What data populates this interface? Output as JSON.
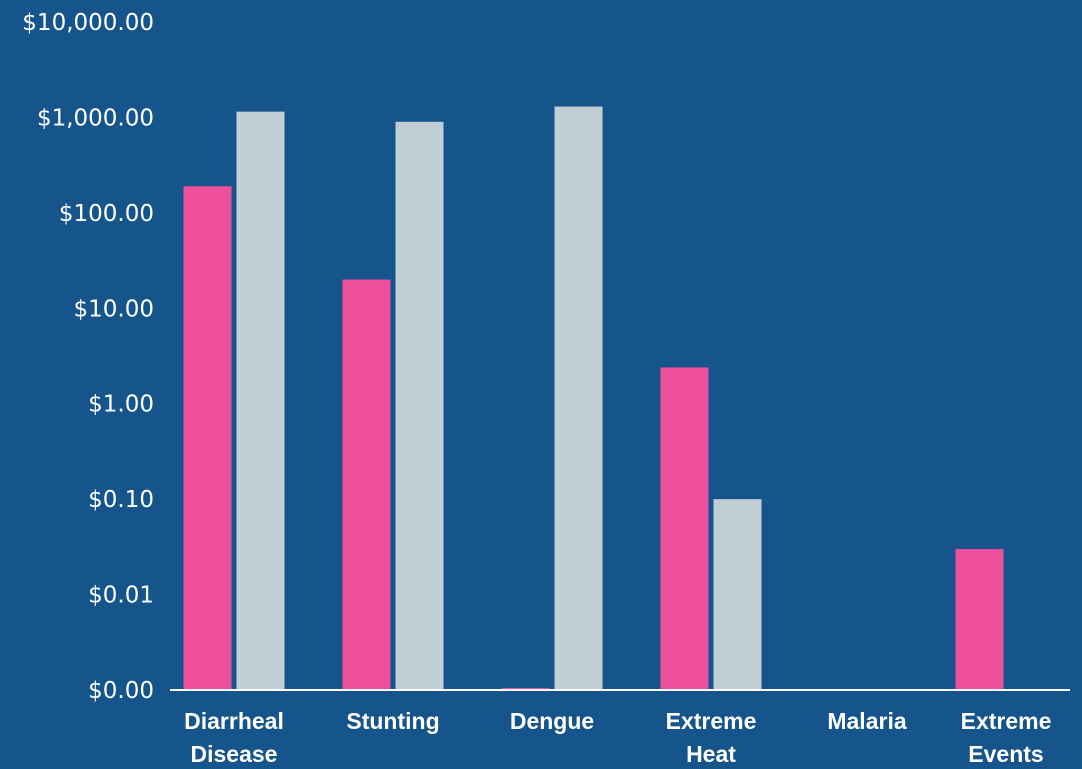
{
  "chart_data": {
    "type": "bar",
    "title": "",
    "xlabel": "",
    "ylabel": "",
    "yscale": "log",
    "ylim": [
      0.001,
      10000
    ],
    "y_ticks": [
      {
        "value": 0.001,
        "label": "$0.00"
      },
      {
        "value": 0.01,
        "label": "$0.01"
      },
      {
        "value": 0.1,
        "label": "$0.10"
      },
      {
        "value": 1,
        "label": "$1.00"
      },
      {
        "value": 10,
        "label": "$10.00"
      },
      {
        "value": 100,
        "label": "$100.00"
      },
      {
        "value": 1000,
        "label": "$1,000.00"
      },
      {
        "value": 10000,
        "label": "$10,000.00"
      }
    ],
    "categories": [
      [
        "Diarrheal",
        "Disease"
      ],
      [
        "Stunting"
      ],
      [
        "Dengue"
      ],
      [
        "Extreme",
        "Heat"
      ],
      [
        "Malaria"
      ],
      [
        "Extreme",
        "Events"
      ]
    ],
    "series": [
      {
        "values": [
          190,
          20,
          0.001,
          2.4,
          null,
          0.03
        ]
      },
      {
        "values": [
          1150,
          900,
          1300,
          0.1,
          null,
          null
        ]
      }
    ],
    "legend": "none",
    "grid": false
  },
  "colors": {
    "background": "#15558c",
    "series": [
      "#ee4f9b",
      "#c2ced6"
    ],
    "axis": "#ffffff",
    "text": "#ffffff"
  }
}
